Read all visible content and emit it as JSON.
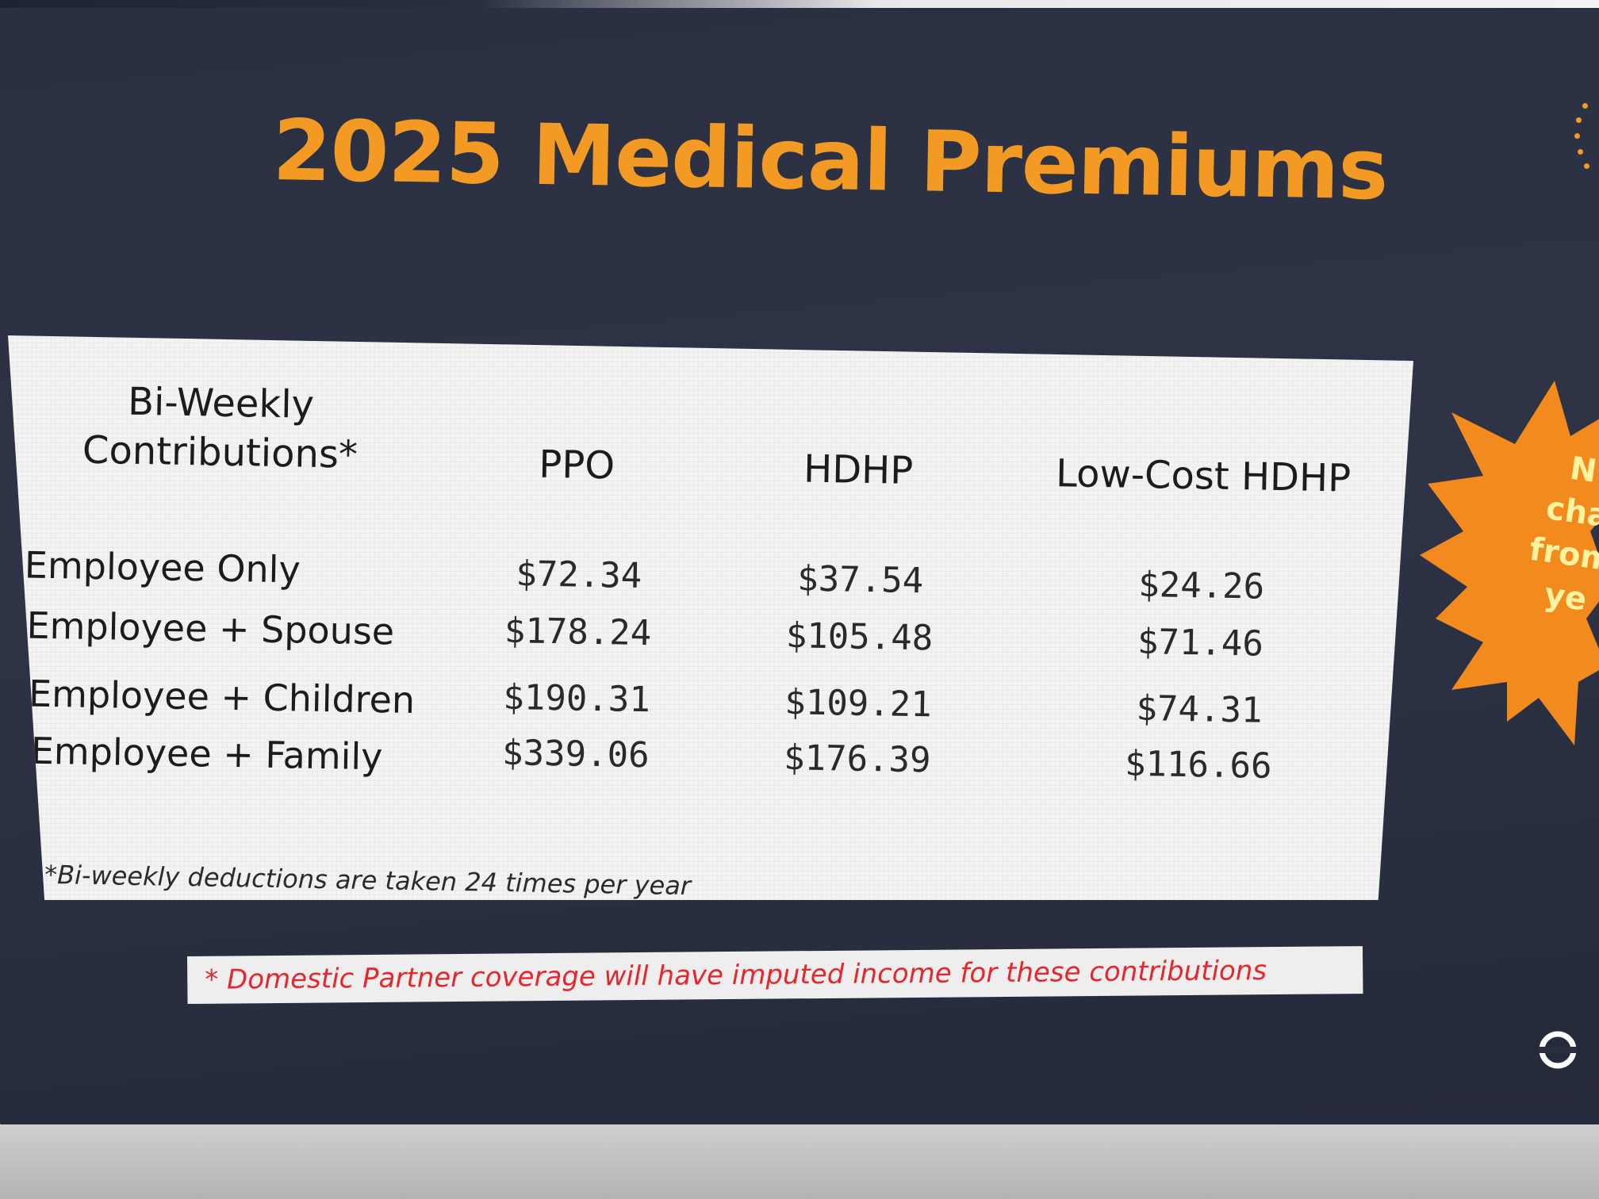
{
  "slide": {
    "title": "2025 Medical Premiums"
  },
  "table": {
    "header": {
      "contributions_line1": "Bi-Weekly",
      "contributions_line2": "Contributions*",
      "ppo": "PPO",
      "hdhp": "HDHP",
      "low_cost_hdhp": "Low-Cost HDHP"
    },
    "rows": [
      {
        "label": "Employee Only",
        "ppo": "$72.34",
        "hdhp": "$37.54",
        "low_cost_hdhp": "$24.26"
      },
      {
        "label": "Employee + Spouse",
        "ppo": "$178.24",
        "hdhp": "$105.48",
        "low_cost_hdhp": "$71.46"
      },
      {
        "label": "Employee + Children",
        "ppo": "$190.31",
        "hdhp": "$109.21",
        "low_cost_hdhp": "$74.31"
      },
      {
        "label": "Employee + Family",
        "ppo": "$339.06",
        "hdhp": "$176.39",
        "low_cost_hdhp": "$116.66"
      }
    ],
    "footnote": "*Bi-weekly deductions are taken 24 times per year"
  },
  "domestic_partner_note": "* Domestic Partner coverage will have imputed income for these contributions",
  "starburst": {
    "line1": "N",
    "line2": "cha",
    "line3": "from",
    "line4": "ye"
  },
  "colors": {
    "title": "#f39a25",
    "background": "#2b3143",
    "starburst": "#f28a1e",
    "note_red": "#e5262c"
  }
}
